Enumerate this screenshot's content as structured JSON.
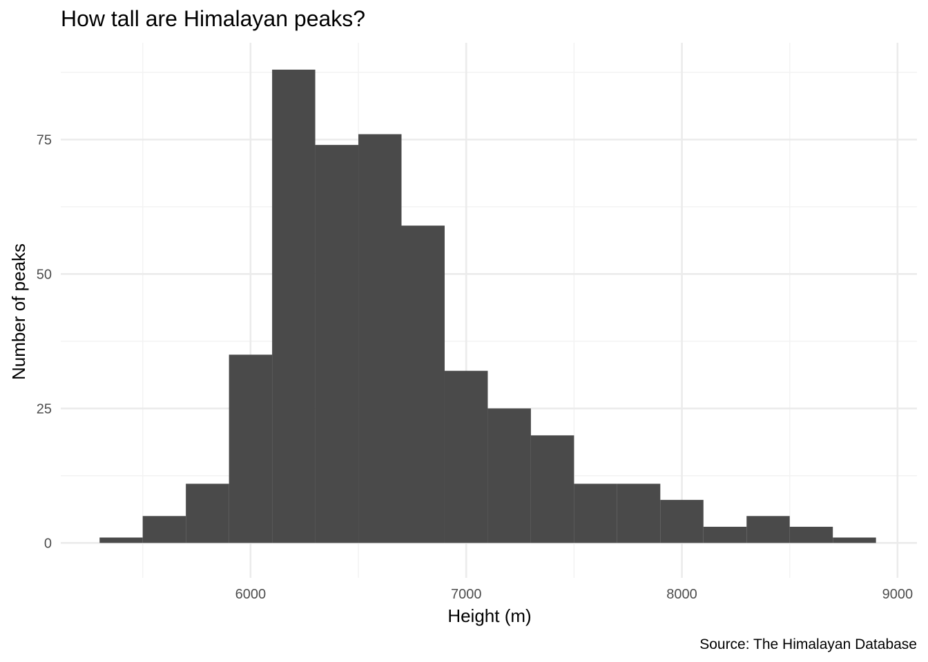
{
  "chart_data": {
    "type": "bar",
    "subtype": "histogram",
    "title": "How tall are Himalayan peaks?",
    "xlabel": "Height (m)",
    "ylabel": "Number of peaks",
    "caption": "Source: The Himalayan Database",
    "bin_width": 200,
    "bin_starts": [
      5300,
      5500,
      5700,
      5900,
      6100,
      6300,
      6500,
      6700,
      6900,
      7100,
      7300,
      7500,
      7700,
      7900,
      8100,
      8300,
      8500,
      8700
    ],
    "values": [
      1,
      5,
      11,
      35,
      88,
      74,
      76,
      59,
      32,
      25,
      20,
      11,
      11,
      8,
      3,
      5,
      3,
      1
    ],
    "xlim": [
      5120,
      9090
    ],
    "ylim": [
      -6.5,
      93
    ],
    "x_ticks": [
      6000,
      7000,
      8000,
      9000
    ],
    "x_tick_labels": [
      "6000",
      "7000",
      "8000",
      "9000"
    ],
    "x_minor_grid": [
      5500,
      6500,
      7500,
      8500
    ],
    "y_ticks": [
      0,
      25,
      50,
      75
    ],
    "y_tick_labels": [
      "0",
      "25",
      "50",
      "75"
    ],
    "y_minor_grid": [
      12.5,
      37.5,
      62.5,
      87.5
    ],
    "grid": true,
    "legend": "none",
    "colors": {
      "bar_fill": "#4a4a4a",
      "grid_major": "#ebebeb",
      "grid_minor": "#f3f3f3",
      "tick_text": "#4d4d4d",
      "title_text": "#000000"
    }
  }
}
